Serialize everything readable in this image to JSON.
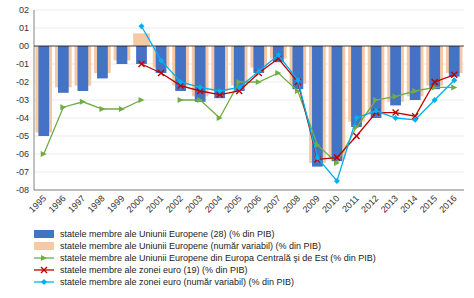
{
  "chart_data": {
    "type": "bar",
    "categories": [
      "1995",
      "1996",
      "1997",
      "1998",
      "1999",
      "2000",
      "2001",
      "2002",
      "2003",
      "2004",
      "2005",
      "2006",
      "2007",
      "2008",
      "2009",
      "2010",
      "2011",
      "2012",
      "2013",
      "2014",
      "2015",
      "2016"
    ],
    "series": [
      {
        "name": "statele membre ale Uniunii Europene (28) (% din PIB)",
        "type": "bar",
        "color": "#4472C4",
        "values": [
          -5.0,
          -2.6,
          -2.5,
          -1.8,
          -1.0,
          -1.0,
          -1.5,
          -2.5,
          -3.1,
          -2.9,
          -2.5,
          -1.5,
          -0.9,
          -2.4,
          -6.7,
          -6.4,
          -4.5,
          -4.0,
          -3.3,
          -3.0,
          -2.4,
          -1.7
        ]
      },
      {
        "name": "statele membre ale Uniunii Europene (număr variabil) (% din PIB)",
        "type": "bar",
        "color": "#F4C9A4",
        "values": [
          -4.8,
          -2.3,
          -2.2,
          -1.5,
          -0.8,
          0.7,
          -1.2,
          -2.2,
          -2.8,
          -2.5,
          -2.2,
          -1.2,
          -0.7,
          -2.1,
          -6.5,
          -6.3,
          -4.2,
          -3.8,
          -3.1,
          -2.8,
          -2.2,
          -1.5
        ]
      },
      {
        "name": "statele membre ale Uniunii Europene din Europa Centrală şi de Est (% din PIB)",
        "type": "line",
        "color": "#70AD47",
        "marker": "triangle-right",
        "values": [
          -6.0,
          -3.4,
          -3.1,
          -3.5,
          -3.5,
          -3.0,
          null,
          -3.0,
          -3.0,
          -4.0,
          -2.0,
          -2.0,
          -1.5,
          -2.5,
          -5.5,
          -6.5,
          -4.5,
          -3.0,
          -2.8,
          -2.5,
          -2.3,
          -2.3
        ]
      },
      {
        "name": "statele membre ale zonei euro (19) (% din PIB)",
        "type": "line",
        "color": "#C00000",
        "marker": "x",
        "values": [
          null,
          null,
          null,
          null,
          null,
          -1.0,
          -1.5,
          -2.2,
          -2.5,
          -2.7,
          -2.5,
          -1.5,
          -0.7,
          -2.0,
          -6.3,
          -6.2,
          -5.0,
          -3.7,
          -3.7,
          -3.9,
          -2.0,
          -1.6
        ]
      },
      {
        "name": "statele membre ale zonei euro (număr variabil) (% din PIB)",
        "type": "line",
        "color": "#00B0F0",
        "marker": "diamond",
        "values": [
          null,
          null,
          null,
          null,
          null,
          1.1,
          -0.8,
          -2.0,
          -2.3,
          -2.5,
          -2.3,
          -1.4,
          -0.5,
          -1.9,
          -6.2,
          -7.5,
          -4.0,
          -3.6,
          -4.0,
          -4.1,
          -3.0,
          -1.9
        ]
      }
    ],
    "ylim": [
      -8,
      2
    ],
    "yticks": [
      {
        "value": -8,
        "label": "-08"
      },
      {
        "value": -7,
        "label": "-07"
      },
      {
        "value": -6,
        "label": "-06"
      },
      {
        "value": -5,
        "label": "-05"
      },
      {
        "value": -4,
        "label": "-04"
      },
      {
        "value": -3,
        "label": "-03"
      },
      {
        "value": -2,
        "label": "-02"
      },
      {
        "value": -1,
        "label": "-01"
      },
      {
        "value": 0,
        "label": "00"
      },
      {
        "value": 1,
        "label": "01"
      },
      {
        "value": 2,
        "label": "02"
      }
    ],
    "grid": true,
    "legend": "bottom"
  }
}
